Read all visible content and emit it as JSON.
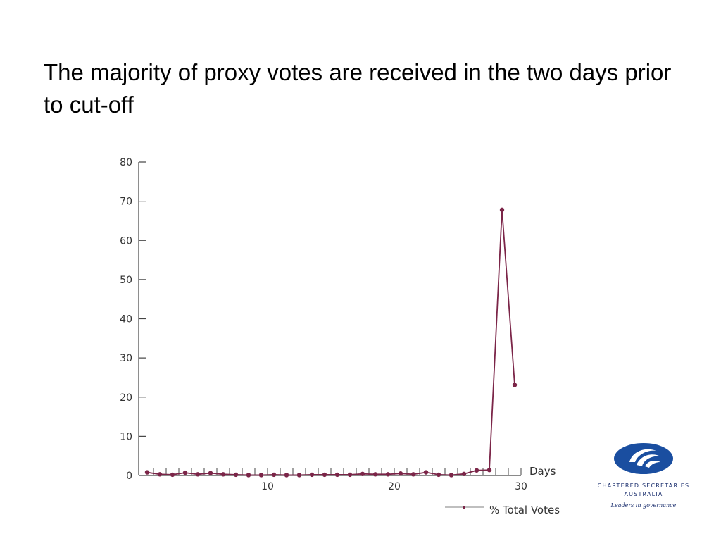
{
  "slide": {
    "title": "The majority of proxy votes are received in the two days prior to cut-off"
  },
  "chart_data": {
    "type": "line",
    "title": "",
    "xlabel": "Days",
    "ylabel": "",
    "xlim": [
      0,
      30
    ],
    "ylim": [
      0,
      80
    ],
    "x_ticks": [
      10,
      20,
      30
    ],
    "y_ticks": [
      0,
      10,
      20,
      30,
      40,
      50,
      60,
      70,
      80
    ],
    "grid": false,
    "legend": "bottom",
    "series": [
      {
        "name": "% Total Votes",
        "color": "#7b2548",
        "x": [
          0.5,
          1.5,
          2.5,
          3.5,
          4.5,
          5.5,
          6.5,
          7.5,
          8.5,
          9.5,
          10.5,
          11.5,
          12.5,
          13.5,
          14.5,
          15.5,
          16.5,
          17.5,
          18.5,
          19.5,
          20.5,
          21.5,
          22.5,
          23.5,
          24.5,
          25.5,
          26.5,
          27.5,
          28.5,
          29.5
        ],
        "y": [
          0.8,
          0.3,
          0.2,
          0.7,
          0.3,
          0.6,
          0.3,
          0.2,
          0.1,
          0.1,
          0.2,
          0.1,
          0.1,
          0.2,
          0.2,
          0.2,
          0.2,
          0.4,
          0.3,
          0.3,
          0.5,
          0.3,
          0.8,
          0.2,
          0.1,
          0.4,
          1.3,
          1.4,
          67.8,
          23.1
        ]
      }
    ]
  },
  "logo": {
    "line1": "CHARTERED SECRETARIES",
    "line2": "AUSTRALIA",
    "tagline": "Leaders in governance",
    "brand_color": "#1a4ea0"
  }
}
